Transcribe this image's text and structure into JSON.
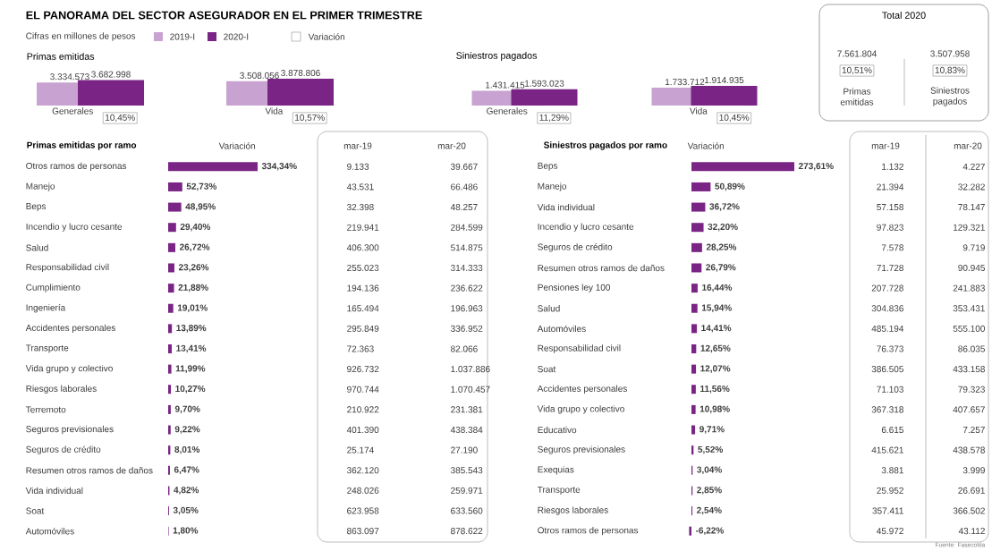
{
  "chart_data": [
    {
      "type": "other",
      "title": "EL PANORAMA DEL SECTOR ASEGURADOR EN EL PRIMER TRIMESTRE",
      "subtitle": "Cifras en millones de pesos",
      "annotations": [
        "Variación",
        "Fuente: Fasecolda"
      ]
    },
    {
      "type": "bar",
      "title": "Primas emitidas",
      "categories": [
        "Generales",
        "Vida"
      ],
      "legend": "top",
      "annotations": [
        "10,45%",
        "10,57%"
      ],
      "series": [
        {
          "name": "2019-I",
          "color": "#c8a2d0",
          "values": [
            3334573,
            3508056
          ],
          "value_labels": [
            "3.334.573",
            "3.508.056"
          ]
        },
        {
          "name": "2020-I",
          "color": "#7a2585",
          "values": [
            3682998,
            3878806
          ],
          "value_labels": [
            "3.682.998",
            "3.878.806"
          ]
        }
      ]
    },
    {
      "type": "bar",
      "title": "Siniestros pagados",
      "categories": [
        "Generales",
        "Vida"
      ],
      "annotations": [
        "11,29%",
        "10,45%"
      ],
      "series": [
        {
          "color": "#c8a2d0",
          "values": [
            1431415,
            1733712
          ],
          "value_labels": [
            "1.431.415",
            "1.733.712"
          ]
        },
        {
          "color": "#7a2585",
          "values": [
            1593023,
            1914935
          ],
          "value_labels": [
            "1.593.023",
            "1.914.935"
          ]
        }
      ]
    },
    {
      "type": "other",
      "title": "Total 2020",
      "categories": [
        "Primas emitidas",
        "Siniestros pagados"
      ],
      "values": [
        7561804,
        3507958
      ],
      "value_labels": [
        "7.561.804",
        "3.507.958"
      ],
      "annotations": [
        "10,51%",
        "10,83%"
      ]
    },
    {
      "type": "bar",
      "orientation": "horizontal",
      "title": "Primas emitidas por ramo",
      "xlabel": "Variación",
      "color": "#7a2585",
      "categories": [
        "Otros ramos de personas",
        "Manejo",
        "Beps",
        "Incendio y lucro cesante",
        "Salud",
        "Responsabilidad civil",
        "Cumplimiento",
        "Ingeniería",
        "Accidentes personales",
        "Transporte",
        "Vida grupo y colectivo",
        "Riesgos laborales",
        "Terremoto",
        "Seguros previsionales",
        "Seguros de crédito",
        "Resumen otros ramos de daños",
        "Vida individual",
        "Soat",
        "Automóviles"
      ],
      "values": [
        334.34,
        52.73,
        48.95,
        29.4,
        26.72,
        23.26,
        21.88,
        19.01,
        13.89,
        13.41,
        11.99,
        10.27,
        9.7,
        9.22,
        8.01,
        6.47,
        4.82,
        3.05,
        1.8
      ],
      "value_labels": [
        "334,34%",
        "52,73%",
        "48,95%",
        "29,40%",
        "26,72%",
        "23,26%",
        "21,88%",
        "19,01%",
        "13,89%",
        "13,41%",
        "11,99%",
        "10,27%",
        "9,70%",
        "9,22%",
        "8,01%",
        "6,47%",
        "4,82%",
        "3,05%",
        "1,80%"
      ]
    },
    {
      "type": "other",
      "title": "mar-19",
      "values": [
        9133,
        43531,
        32398,
        219941,
        406300,
        255023,
        194136,
        165494,
        295849,
        72363,
        926732,
        970744,
        210922,
        401390,
        25174,
        362120,
        248026,
        623958,
        863097
      ],
      "value_labels": [
        "9.133",
        "43.531",
        "32.398",
        "219.941",
        "406.300",
        "255.023",
        "194.136",
        "165.494",
        "295.849",
        "72.363",
        "926.732",
        "970.744",
        "210.922",
        "401.390",
        "25.174",
        "362.120",
        "248.026",
        "623.958",
        "863.097"
      ]
    },
    {
      "type": "other",
      "title": "mar-20",
      "values": [
        39667,
        66486,
        48257,
        284599,
        514875,
        314333,
        236622,
        196963,
        336952,
        82066,
        1037886,
        1070457,
        231381,
        438384,
        27190,
        385543,
        259971,
        633560,
        878622
      ],
      "value_labels": [
        "39.667",
        "66.486",
        "48.257",
        "284.599",
        "514.875",
        "314.333",
        "236.622",
        "196.963",
        "336.952",
        "82.066",
        "1.037.886",
        "1.070.457",
        "231.381",
        "438.384",
        "27.190",
        "385.543",
        "259.971",
        "633.560",
        "878.622"
      ]
    },
    {
      "type": "bar",
      "orientation": "horizontal",
      "title": "Siniestros pagados por ramo",
      "xlabel": "Variación",
      "color": "#7a2585",
      "categories": [
        "Beps",
        "Manejo",
        "Vida individual",
        "Incendio y lucro cesante",
        "Seguros de crédito",
        "Resumen otros ramos de daños",
        "Pensiones ley 100",
        "Salud",
        "Automóviles",
        "Responsabilidad civil",
        "Soat",
        "Accidentes personales",
        "Vida grupo y colectivo",
        "Educativo",
        "Seguros previsionales",
        "Exequias",
        "Transporte",
        "Riesgos laborales",
        "Otros ramos de personas"
      ],
      "values": [
        273.61,
        50.89,
        36.72,
        32.2,
        28.25,
        26.79,
        16.44,
        15.94,
        14.41,
        12.65,
        12.07,
        11.56,
        10.98,
        9.71,
        5.52,
        3.04,
        2.85,
        2.54,
        -6.22
      ],
      "value_labels": [
        "273,61%",
        "50,89%",
        "36,72%",
        "32,20%",
        "28,25%",
        "26,79%",
        "16,44%",
        "15,94%",
        "14,41%",
        "12,65%",
        "12,07%",
        "11,56%",
        "10,98%",
        "9,71%",
        "5,52%",
        "3,04%",
        "2,85%",
        "2,54%",
        "-6,22%"
      ]
    },
    {
      "type": "other",
      "title": "mar-19",
      "values": [
        1132,
        21394,
        57158,
        97823,
        7578,
        71728,
        207728,
        304836,
        485194,
        76373,
        386505,
        71103,
        367318,
        6615,
        415621,
        3881,
        25952,
        357411,
        45972
      ],
      "value_labels": [
        "1.132",
        "21.394",
        "57.158",
        "97.823",
        "7.578",
        "71.728",
        "207.728",
        "304.836",
        "485.194",
        "76.373",
        "386.505",
        "71.103",
        "367.318",
        "6.615",
        "415.621",
        "3.881",
        "25.952",
        "357.411",
        "45.972"
      ]
    },
    {
      "type": "other",
      "title": "mar-20",
      "values": [
        4227,
        32282,
        78147,
        129321,
        9719,
        90945,
        241883,
        353431,
        555100,
        86035,
        433158,
        79323,
        407657,
        7257,
        438578,
        3999,
        26691,
        366502,
        43112
      ],
      "value_labels": [
        "4.227",
        "32.282",
        "78.147",
        "129.321",
        "9.719",
        "90.945",
        "241.883",
        "353.431",
        "555.100",
        "86.035",
        "433.158",
        "79.323",
        "407.657",
        "7.257",
        "438.578",
        "3.999",
        "26.691",
        "366.502",
        "43.112"
      ]
    }
  ]
}
